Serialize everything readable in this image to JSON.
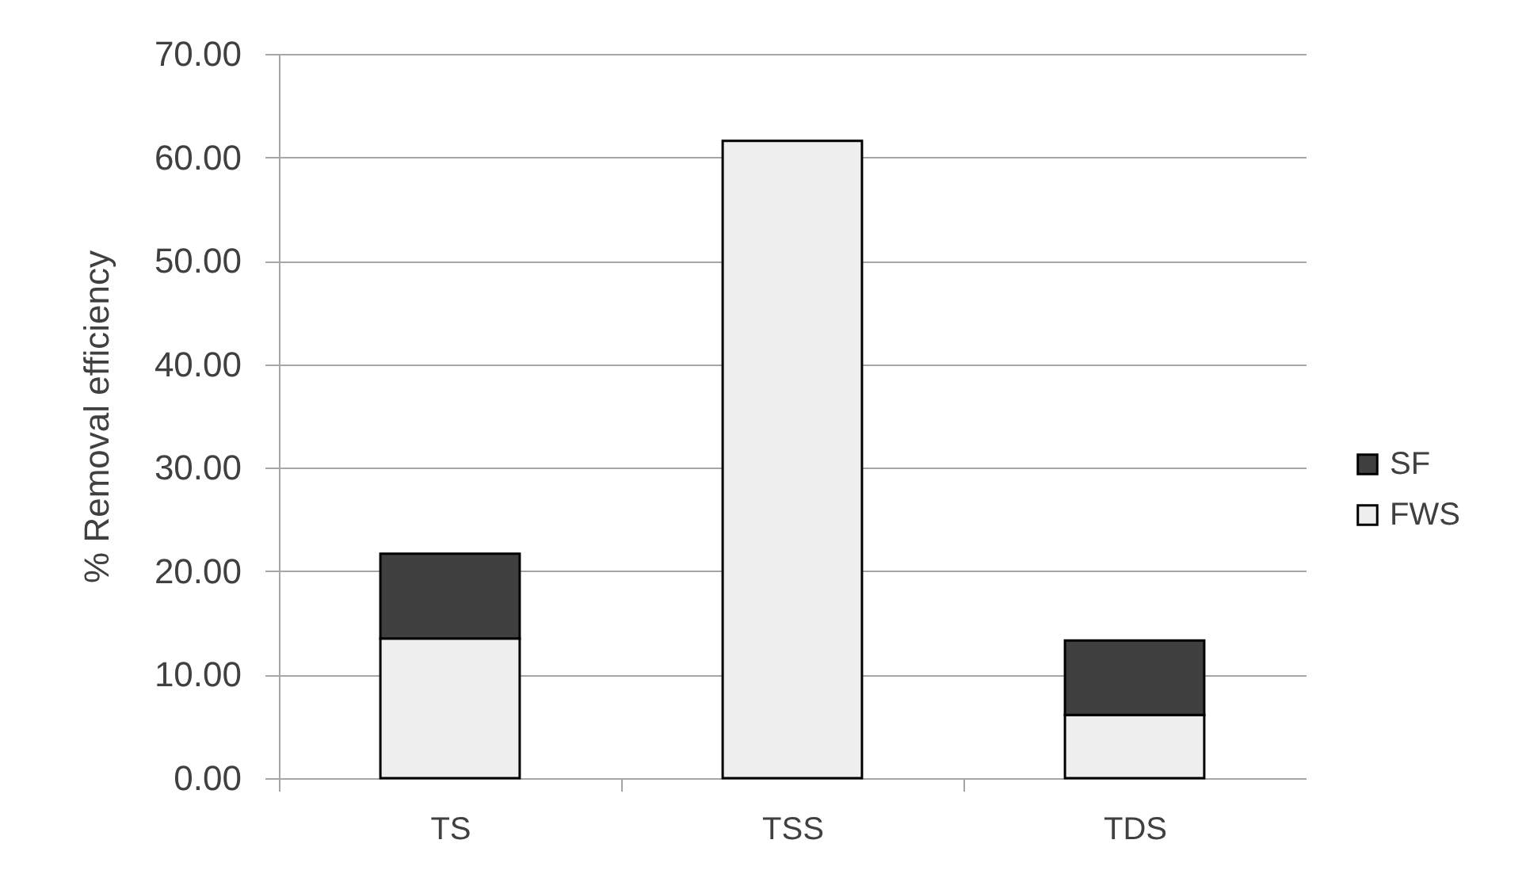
{
  "chart_data": {
    "type": "bar",
    "stacked": true,
    "ylabel": "% Removal efficiency",
    "categories": [
      "TS",
      "TSS",
      "TDS"
    ],
    "series": [
      {
        "name": "FWS",
        "color": "#eeeeee",
        "values": [
          13.5,
          61.6,
          6.1
        ]
      },
      {
        "name": "SF",
        "color": "#404040",
        "values": [
          8.2,
          null,
          7.2
        ]
      }
    ],
    "ylim": [
      0,
      70
    ],
    "yticks": [
      {
        "value": 0,
        "label": "0.00"
      },
      {
        "value": 10,
        "label": "10.00"
      },
      {
        "value": 20,
        "label": "20.00"
      },
      {
        "value": 30,
        "label": "30.00"
      },
      {
        "value": 40,
        "label": "40.00"
      },
      {
        "value": 50,
        "label": "50.00"
      },
      {
        "value": 60,
        "label": "60.00"
      },
      {
        "value": 70,
        "label": "70.00"
      }
    ],
    "grid": "y",
    "legend": "right"
  }
}
